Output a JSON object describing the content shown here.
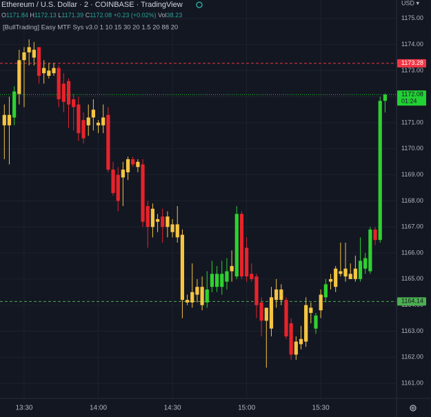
{
  "header": {
    "symbol": "Ethereum / U.S. Dollar · 2 · COINBASE · TradingView",
    "ohlc": [
      {
        "label": "O",
        "value": 1171.84
      },
      {
        "label": "H",
        "value": 1172.13
      },
      {
        "label": "L",
        "value": 1171.39
      },
      {
        "label": "C",
        "value": 1172.08
      }
    ],
    "change": "+0.23 (+0.02%)",
    "volume_label": "Vol",
    "volume": 38.23,
    "indicator": "[BullTrading] Easy MTF Sys v3.0 1 10 15 30 20 1.5 20 88 20"
  },
  "chart_data": {
    "type": "candlestick",
    "currency": "USD ▾",
    "x": [
      "13:22",
      "13:24",
      "13:26",
      "13:28",
      "13:30",
      "13:32",
      "13:34",
      "13:36",
      "13:38",
      "13:40",
      "13:42",
      "13:44",
      "13:46",
      "13:48",
      "13:50",
      "13:52",
      "13:54",
      "13:56",
      "13:58",
      "14:00",
      "14:02",
      "14:04",
      "14:06",
      "14:08",
      "14:10",
      "14:12",
      "14:14",
      "14:16",
      "14:18",
      "14:20",
      "14:22",
      "14:24",
      "14:26",
      "14:28",
      "14:30",
      "14:32",
      "14:34",
      "14:36",
      "14:38",
      "14:40",
      "14:42",
      "14:44",
      "14:46",
      "14:48",
      "14:50",
      "14:52",
      "14:54",
      "14:56",
      "14:58",
      "15:00",
      "15:02",
      "15:04",
      "15:06",
      "15:08",
      "15:10",
      "15:12",
      "15:14",
      "15:16",
      "15:18",
      "15:20",
      "15:22",
      "15:24",
      "15:26",
      "15:28",
      "15:30",
      "15:32",
      "15:34",
      "15:36",
      "15:38",
      "15:40",
      "15:42",
      "15:44",
      "15:46",
      "15:48",
      "15:50",
      "15:52",
      "15:54",
      "15:56"
    ],
    "open": [
      1171.3,
      1170.9,
      1171.2,
      1172.1,
      1173.4,
      1173.7,
      1173.8,
      1173.9,
      1172.9,
      1173.0,
      1173.1,
      1173.1,
      1172.5,
      1172.6,
      1171.9,
      1171.7,
      1171.1,
      1170.9,
      1171.2,
      1170.9,
      1170.9,
      1171.3,
      1169.2,
      1169.0,
      1168.9,
      1169.1,
      1169.6,
      1169.3,
      1169.4,
      1167.8,
      1167.0,
      1167.2,
      1167.4,
      1167.0,
      1167.1,
      1166.6,
      1166.7,
      1164.2,
      1164.1,
      1164.4,
      1164.7,
      1164.1,
      1164.7,
      1164.7,
      1164.7,
      1164.9,
      1165.3,
      1165.1,
      1167.5,
      1166.2,
      1165.2,
      1165.1,
      1164.1,
      1163.4,
      1163.1,
      1164.2,
      1164.6,
      1164.2,
      1163.3,
      1162.1,
      1162.5,
      1162.6,
      1163.7,
      1163.1,
      1163.8,
      1164.3,
      1165.0,
      1164.7,
      1165.3,
      1165.1,
      1165.2,
      1165.0,
      1165.0,
      1165.4,
      1165.3,
      1166.9,
      1166.5,
      1171.84
    ],
    "high": [
      1171.7,
      1172.0,
      1172.4,
      1173.8,
      1173.9,
      1174.2,
      1174.1,
      1173.9,
      1173.4,
      1173.3,
      1173.3,
      1173.2,
      1172.9,
      1172.7,
      1172.1,
      1172.0,
      1171.4,
      1171.7,
      1171.9,
      1171.1,
      1171.7,
      1171.6,
      1169.5,
      1169.3,
      1169.5,
      1169.7,
      1169.7,
      1169.6,
      1169.6,
      1168.0,
      1167.9,
      1167.5,
      1167.7,
      1167.6,
      1167.3,
      1167.8,
      1166.9,
      1164.4,
      1165.6,
      1165.0,
      1165.1,
      1165.3,
      1165.7,
      1165.5,
      1165.7,
      1165.8,
      1166.1,
      1167.8,
      1167.6,
      1166.6,
      1165.6,
      1165.2,
      1164.3,
      1163.8,
      1164.7,
      1165.0,
      1164.8,
      1164.3,
      1163.5,
      1162.8,
      1163.2,
      1164.3,
      1164.1,
      1163.7,
      1164.6,
      1165.0,
      1165.2,
      1165.5,
      1166.4,
      1166.4,
      1165.6,
      1165.9,
      1166.6,
      1166.0,
      1167.0,
      1167.0,
      1172.0,
      1172.13
    ],
    "low": [
      1169.6,
      1169.4,
      1170.9,
      1171.7,
      1171.6,
      1173.2,
      1173.2,
      1172.5,
      1172.5,
      1172.7,
      1172.8,
      1171.6,
      1171.4,
      1170.8,
      1170.7,
      1170.3,
      1170.2,
      1170.5,
      1170.7,
      1170.6,
      1170.6,
      1169.1,
      1168.2,
      1167.6,
      1167.8,
      1168.8,
      1169.3,
      1169.1,
      1167.0,
      1166.2,
      1166.6,
      1166.8,
      1166.4,
      1166.6,
      1166.6,
      1166.4,
      1163.5,
      1164.0,
      1163.9,
      1164.1,
      1163.8,
      1163.9,
      1164.5,
      1164.5,
      1164.4,
      1164.6,
      1164.9,
      1165.0,
      1165.0,
      1164.9,
      1164.9,
      1163.5,
      1162.8,
      1161.6,
      1162.8,
      1163.9,
      1164.0,
      1162.7,
      1161.9,
      1161.9,
      1162.3,
      1162.4,
      1163.3,
      1162.9,
      1163.5,
      1164.1,
      1164.6,
      1164.5,
      1165.1,
      1164.9,
      1165.0,
      1164.9,
      1164.9,
      1165.2,
      1165.2,
      1166.3,
      1166.4,
      1171.39
    ],
    "close": [
      1170.9,
      1171.3,
      1172.2,
      1173.4,
      1173.7,
      1173.9,
      1173.5,
      1172.8,
      1173.1,
      1172.8,
      1172.9,
      1171.9,
      1171.8,
      1171.7,
      1171.6,
      1170.6,
      1170.4,
      1171.2,
      1171.5,
      1171.0,
      1171.2,
      1169.2,
      1168.3,
      1168.0,
      1169.2,
      1169.6,
      1169.4,
      1169.5,
      1167.2,
      1167.0,
      1167.7,
      1167.3,
      1167.0,
      1167.4,
      1166.8,
      1167.1,
      1164.2,
      1164.1,
      1164.5,
      1164.7,
      1164.0,
      1164.6,
      1165.2,
      1165.2,
      1165.2,
      1165.3,
      1165.5,
      1167.5,
      1165.1,
      1165.1,
      1165.0,
      1164.0,
      1163.4,
      1163.9,
      1164.3,
      1164.6,
      1164.2,
      1162.8,
      1162.1,
      1162.6,
      1162.7,
      1164.0,
      1163.9,
      1163.6,
      1164.4,
      1164.8,
      1164.9,
      1165.4,
      1165.2,
      1165.4,
      1165.0,
      1165.4,
      1165.7,
      1165.8,
      1166.9,
      1166.5,
      1171.84,
      1172.08
    ],
    "colors": [
      "#f5c542",
      "#f5c542",
      "#2ed12f",
      "#f5c542",
      "#f5c542",
      "#f5c542",
      "#f5c542",
      "#e8232b",
      "#f5c542",
      "#f5c542",
      "#f5c542",
      "#e8232b",
      "#e8232b",
      "#e8232b",
      "#e8232b",
      "#e8232b",
      "#e8232b",
      "#f5c542",
      "#f5c542",
      "#f5c542",
      "#f5c542",
      "#e8232b",
      "#e8232b",
      "#e8232b",
      "#f5c542",
      "#f5c542",
      "#e8232b",
      "#f5c542",
      "#e8232b",
      "#e8232b",
      "#f5c542",
      "#f5c542",
      "#e8232b",
      "#f5c542",
      "#f5c542",
      "#f5c542",
      "#f5c542",
      "#f5c542",
      "#f5c542",
      "#f5c542",
      "#f5c542",
      "#2ed12f",
      "#2ed12f",
      "#2ed12f",
      "#2ed12f",
      "#2ed12f",
      "#f5c542",
      "#2ed12f",
      "#e8232b",
      "#e8232b",
      "#e8232b",
      "#e8232b",
      "#e8232b",
      "#f5c542",
      "#f5c542",
      "#f5c542",
      "#f5c542",
      "#e8232b",
      "#e8232b",
      "#f5c542",
      "#f5c542",
      "#f5c542",
      "#f5c542",
      "#2ed12f",
      "#f5c542",
      "#2ed12f",
      "#f5c542",
      "#f5c542",
      "#f5c542",
      "#f5c542",
      "#f5c542",
      "#f5c542",
      "#2ed12f",
      "#2ed12f",
      "#2ed12f",
      "#e8232b",
      "#2ed12f",
      "#2ed12f"
    ],
    "ylim": [
      1160.42,
      1175.71
    ],
    "yticks": [
      {
        "value": 1161,
        "label": "1161.00"
      },
      {
        "value": 1162,
        "label": "1162.00"
      },
      {
        "value": 1163,
        "label": "1163.00"
      },
      {
        "value": 1164,
        "label": "1164.00"
      },
      {
        "value": 1165,
        "label": "1165.00"
      },
      {
        "value": 1166,
        "label": "1166.00"
      },
      {
        "value": 1167,
        "label": "1167.00"
      },
      {
        "value": 1168,
        "label": "1168.00"
      },
      {
        "value": 1169,
        "label": "1169.00"
      },
      {
        "value": 1170,
        "label": "1170.00"
      },
      {
        "value": 1171,
        "label": "1171.00"
      },
      {
        "value": 1172,
        "label": "1172.00"
      },
      {
        "value": 1173,
        "label": "1173.00"
      },
      {
        "value": 1174,
        "label": "1174.00"
      },
      {
        "value": 1175,
        "label": "1175.00"
      }
    ],
    "xticks": [
      "13:30",
      "14:00",
      "14:30",
      "15:00",
      "15:30"
    ],
    "price_lines": [
      {
        "value": 1173.28,
        "color": "#f23645",
        "style": "dashed"
      },
      {
        "value": 1172.08,
        "color": "#22d134",
        "style": "dotted",
        "countdown": "01:24"
      },
      {
        "value": 1164.14,
        "color": "#4caf50",
        "style": "dashed"
      }
    ],
    "grid": true
  }
}
